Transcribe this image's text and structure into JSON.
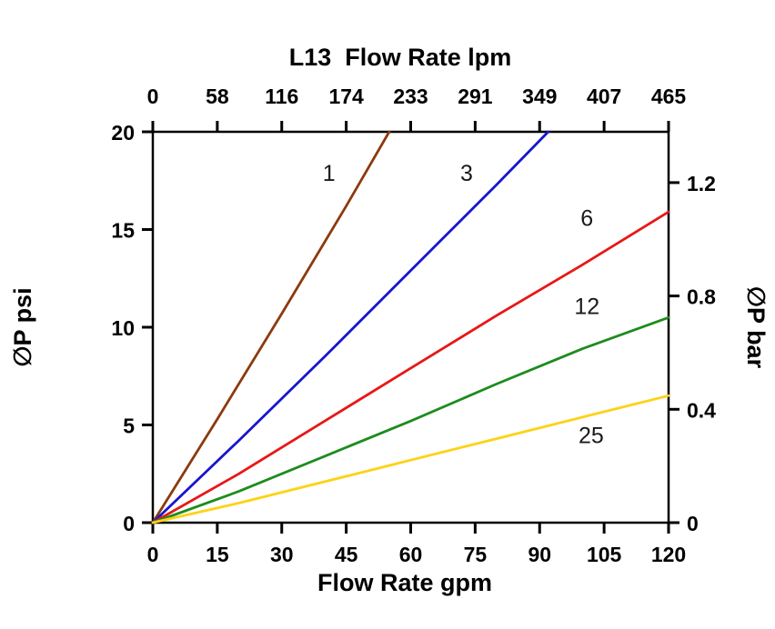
{
  "chart_data": {
    "type": "line",
    "title_top": "L13  Flow Rate lpm",
    "xlabel_bottom": "Flow Rate gpm",
    "ylabel_left": "∅P psi",
    "ylabel_right": "∅P bar",
    "xlim": [
      0,
      120
    ],
    "ylim": [
      0,
      20
    ],
    "x_bottom_ticks": [
      0,
      15,
      30,
      45,
      60,
      75,
      90,
      105,
      120
    ],
    "x_top_ticks": [
      "0",
      "58",
      "116",
      "174",
      "233",
      "291",
      "349",
      "407",
      "465"
    ],
    "y_left_ticks": [
      0,
      5,
      10,
      15,
      20
    ],
    "y_right_ticks": [
      {
        "label": "0",
        "psi": 0
      },
      {
        "label": "0.4",
        "psi": 5.8
      },
      {
        "label": "0.8",
        "psi": 11.6
      },
      {
        "label": "1.2",
        "psi": 17.4
      }
    ],
    "grid": false,
    "legend": "inline-labels",
    "axis_color": "#000000",
    "series": [
      {
        "name": "1",
        "color": "#8c3a0e",
        "x": [
          0,
          15,
          30,
          45,
          55
        ],
        "y": [
          0,
          5.3,
          10.7,
          16.2,
          20
        ],
        "label_pos": {
          "x": 41,
          "y": 17.9
        }
      },
      {
        "name": "3",
        "color": "#1616cf",
        "x": [
          0,
          20,
          40,
          60,
          80,
          92
        ],
        "y": [
          0,
          4.2,
          8.5,
          12.9,
          17.3,
          20
        ],
        "label_pos": {
          "x": 73,
          "y": 17.9
        }
      },
      {
        "name": "6",
        "color": "#e81717",
        "x": [
          0,
          20,
          40,
          60,
          80,
          100,
          120
        ],
        "y": [
          0,
          2.5,
          5.2,
          7.9,
          10.6,
          13.2,
          15.9
        ],
        "label_pos": {
          "x": 101,
          "y": 15.6
        }
      },
      {
        "name": "12",
        "color": "#1d8c1d",
        "x": [
          0,
          20,
          40,
          60,
          80,
          100,
          120
        ],
        "y": [
          0,
          1.6,
          3.4,
          5.2,
          7.1,
          8.9,
          10.5
        ],
        "label_pos": {
          "x": 101,
          "y": 11.1
        }
      },
      {
        "name": "25",
        "color": "#fdd215",
        "x": [
          0,
          20,
          40,
          60,
          80,
          100,
          120
        ],
        "y": [
          0,
          1.0,
          2.1,
          3.2,
          4.3,
          5.4,
          6.5
        ],
        "label_pos": {
          "x": 102,
          "y": 4.5
        }
      }
    ]
  }
}
